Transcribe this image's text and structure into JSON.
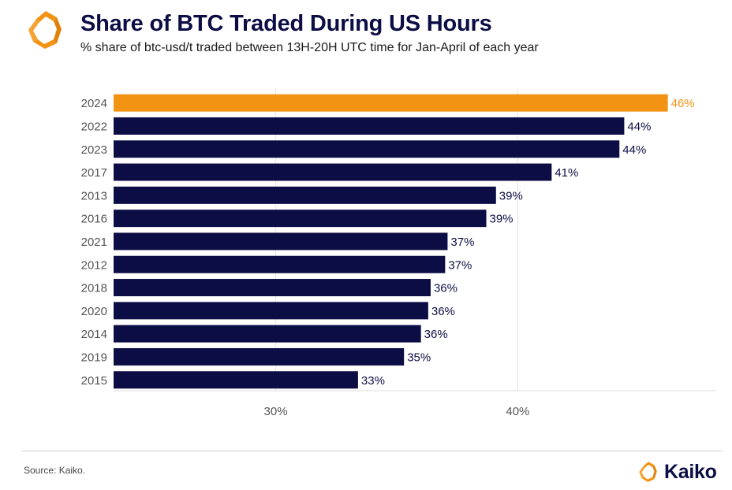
{
  "header": {
    "title": "Share of BTC Traded During US Hours",
    "subtitle": "% share of btc-usd/t traded between 13H-20H UTC time for Jan-April of each year"
  },
  "footer": {
    "source": "Source: Kaiko.",
    "brand": "Kaiko"
  },
  "icons": {
    "logo": "kaiko-logo-icon"
  },
  "colors": {
    "highlight": "#f39314",
    "bar": "#0d0d45",
    "grid": "#e3e3e3",
    "tick_text": "#555555"
  },
  "chart_data": {
    "type": "bar",
    "orientation": "horizontal",
    "categories": [
      "2024",
      "2022",
      "2023",
      "2017",
      "2013",
      "2016",
      "2021",
      "2012",
      "2018",
      "2020",
      "2014",
      "2019",
      "2015"
    ],
    "values": [
      46.2,
      44.4,
      44.2,
      41.4,
      39.1,
      38.7,
      37.1,
      37.0,
      36.4,
      36.3,
      36.0,
      35.3,
      33.4
    ],
    "data_labels": [
      "46%",
      "44%",
      "44%",
      "41%",
      "39%",
      "39%",
      "37%",
      "37%",
      "36%",
      "36%",
      "36%",
      "35%",
      "33%"
    ],
    "highlight_category": "2024",
    "xlim": [
      23.3,
      48.2
    ],
    "x_ticks": [
      30,
      40
    ],
    "x_tick_labels": [
      "30%",
      "40%"
    ],
    "grid": "vertical"
  }
}
